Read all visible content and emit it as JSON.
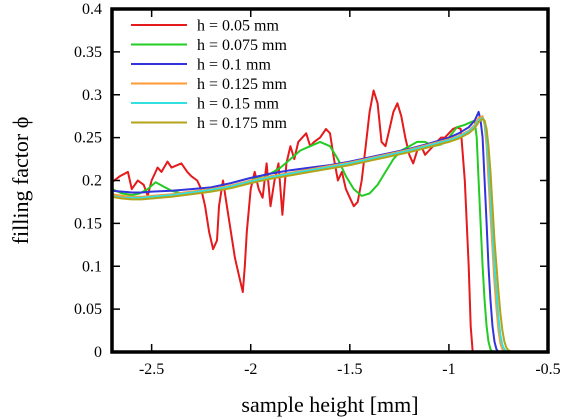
{
  "chart_data": {
    "type": "line",
    "title": "",
    "xlabel": "sample height [mm]",
    "ylabel": "filling factor ϕ",
    "xlim": [
      -2.7,
      -0.5
    ],
    "ylim": [
      0,
      0.4
    ],
    "xticks": [
      -2.5,
      -2,
      -1.5,
      -1,
      -0.5
    ],
    "xtick_labels": [
      "-2.5",
      "-2",
      "-1.5",
      "-1",
      "-0.5"
    ],
    "yticks": [
      0,
      0.05,
      0.1,
      0.15,
      0.2,
      0.25,
      0.3,
      0.35,
      0.4
    ],
    "ytick_labels": [
      "0",
      "0.05",
      "0.1",
      "0.15",
      "0.2",
      "0.25",
      "0.3",
      "0.35",
      "0.4"
    ],
    "grid": false,
    "legend_position": "top-left",
    "series": [
      {
        "name": "h = 0.05 mm",
        "color": "#e41a1c",
        "x": [
          -2.7,
          -2.66,
          -2.62,
          -2.6,
          -2.57,
          -2.54,
          -2.52,
          -2.5,
          -2.47,
          -2.45,
          -2.42,
          -2.4,
          -2.37,
          -2.35,
          -2.32,
          -2.3,
          -2.27,
          -2.25,
          -2.23,
          -2.21,
          -2.19,
          -2.17,
          -2.16,
          -2.14,
          -2.12,
          -2.1,
          -2.08,
          -2.06,
          -2.04,
          -2.03,
          -2.02,
          -2.0,
          -1.98,
          -1.96,
          -1.94,
          -1.92,
          -1.9,
          -1.88,
          -1.86,
          -1.84,
          -1.82,
          -1.8,
          -1.78,
          -1.76,
          -1.74,
          -1.72,
          -1.7,
          -1.68,
          -1.65,
          -1.62,
          -1.6,
          -1.58,
          -1.56,
          -1.54,
          -1.52,
          -1.5,
          -1.48,
          -1.46,
          -1.44,
          -1.42,
          -1.4,
          -1.38,
          -1.36,
          -1.34,
          -1.32,
          -1.3,
          -1.28,
          -1.26,
          -1.24,
          -1.22,
          -1.2,
          -1.18,
          -1.16,
          -1.14,
          -1.12,
          -1.1,
          -1.08,
          -1.06,
          -1.04,
          -1.02,
          -1.0,
          -0.98,
          -0.96,
          -0.94,
          -0.92,
          -0.9,
          -0.89,
          -0.88
        ],
        "y": [
          0.198,
          0.205,
          0.21,
          0.19,
          0.2,
          0.195,
          0.182,
          0.2,
          0.215,
          0.21,
          0.222,
          0.215,
          0.218,
          0.22,
          0.21,
          0.205,
          0.2,
          0.19,
          0.17,
          0.14,
          0.12,
          0.13,
          0.17,
          0.2,
          0.17,
          0.14,
          0.11,
          0.09,
          0.07,
          0.1,
          0.14,
          0.19,
          0.21,
          0.19,
          0.18,
          0.22,
          0.17,
          0.2,
          0.22,
          0.16,
          0.22,
          0.24,
          0.225,
          0.245,
          0.25,
          0.255,
          0.24,
          0.245,
          0.25,
          0.26,
          0.255,
          0.225,
          0.2,
          0.21,
          0.19,
          0.18,
          0.17,
          0.175,
          0.2,
          0.24,
          0.28,
          0.305,
          0.29,
          0.245,
          0.24,
          0.26,
          0.28,
          0.29,
          0.275,
          0.25,
          0.23,
          0.22,
          0.235,
          0.24,
          0.23,
          0.235,
          0.24,
          0.245,
          0.25,
          0.25,
          0.255,
          0.26,
          0.262,
          0.26,
          0.2,
          0.1,
          0.03,
          0.0
        ]
      },
      {
        "name": "h = 0.075 mm",
        "color": "#22cc22",
        "x": [
          -2.7,
          -2.65,
          -2.6,
          -2.56,
          -2.52,
          -2.48,
          -2.44,
          -2.4,
          -2.35,
          -2.3,
          -2.25,
          -2.2,
          -2.15,
          -2.1,
          -2.05,
          -2.0,
          -1.95,
          -1.9,
          -1.85,
          -1.8,
          -1.75,
          -1.7,
          -1.65,
          -1.6,
          -1.56,
          -1.52,
          -1.48,
          -1.44,
          -1.4,
          -1.36,
          -1.32,
          -1.28,
          -1.24,
          -1.2,
          -1.16,
          -1.12,
          -1.08,
          -1.04,
          -1.0,
          -0.96,
          -0.92,
          -0.89,
          -0.87,
          -0.86,
          -0.85,
          -0.84,
          -0.83,
          -0.82,
          -0.81,
          -0.8,
          -0.79,
          -0.78
        ],
        "y": [
          0.19,
          0.185,
          0.183,
          0.185,
          0.19,
          0.198,
          0.193,
          0.188,
          0.185,
          0.186,
          0.188,
          0.19,
          0.19,
          0.194,
          0.196,
          0.2,
          0.205,
          0.208,
          0.215,
          0.225,
          0.235,
          0.24,
          0.245,
          0.24,
          0.225,
          0.205,
          0.19,
          0.182,
          0.185,
          0.195,
          0.21,
          0.225,
          0.235,
          0.24,
          0.245,
          0.245,
          0.24,
          0.242,
          0.25,
          0.262,
          0.265,
          0.268,
          0.27,
          0.25,
          0.2,
          0.15,
          0.1,
          0.06,
          0.03,
          0.012,
          0.003,
          0.0
        ]
      },
      {
        "name": "h = 0.1 mm",
        "color": "#3333dd",
        "x": [
          -2.7,
          -2.65,
          -2.6,
          -2.55,
          -2.5,
          -2.4,
          -2.3,
          -2.2,
          -2.1,
          -2.0,
          -1.9,
          -1.8,
          -1.7,
          -1.6,
          -1.5,
          -1.4,
          -1.3,
          -1.2,
          -1.1,
          -1.0,
          -0.95,
          -0.9,
          -0.87,
          -0.85,
          -0.84,
          -0.83,
          -0.82,
          -0.81,
          -0.8,
          -0.79,
          -0.78,
          -0.77,
          -0.76,
          -0.75
        ],
        "y": [
          0.188,
          0.187,
          0.186,
          0.186,
          0.187,
          0.188,
          0.19,
          0.192,
          0.197,
          0.203,
          0.208,
          0.212,
          0.215,
          0.218,
          0.222,
          0.227,
          0.232,
          0.237,
          0.243,
          0.25,
          0.255,
          0.262,
          0.27,
          0.28,
          0.27,
          0.25,
          0.2,
          0.15,
          0.1,
          0.06,
          0.03,
          0.012,
          0.003,
          0.0
        ]
      },
      {
        "name": "h = 0.125 mm",
        "color": "#ff9933",
        "x": [
          -2.7,
          -2.65,
          -2.6,
          -2.55,
          -2.5,
          -2.4,
          -2.3,
          -2.2,
          -2.1,
          -2.0,
          -1.9,
          -1.8,
          -1.7,
          -1.6,
          -1.5,
          -1.4,
          -1.3,
          -1.2,
          -1.1,
          -1.0,
          -0.95,
          -0.9,
          -0.87,
          -0.85,
          -0.83,
          -0.82,
          -0.81,
          -0.8,
          -0.79,
          -0.78,
          -0.77,
          -0.76,
          -0.75,
          -0.74,
          -0.73,
          -0.72
        ],
        "y": [
          0.184,
          0.182,
          0.181,
          0.181,
          0.182,
          0.184,
          0.187,
          0.19,
          0.194,
          0.2,
          0.205,
          0.209,
          0.213,
          0.217,
          0.221,
          0.226,
          0.231,
          0.236,
          0.242,
          0.248,
          0.252,
          0.258,
          0.265,
          0.273,
          0.275,
          0.265,
          0.24,
          0.2,
          0.16,
          0.12,
          0.08,
          0.05,
          0.025,
          0.01,
          0.003,
          0.0
        ]
      },
      {
        "name": "h = 0.15 mm",
        "color": "#33e0e0",
        "x": [
          -2.7,
          -2.65,
          -2.6,
          -2.55,
          -2.5,
          -2.4,
          -2.3,
          -2.2,
          -2.1,
          -2.0,
          -1.9,
          -1.8,
          -1.7,
          -1.6,
          -1.5,
          -1.4,
          -1.3,
          -1.2,
          -1.1,
          -1.0,
          -0.95,
          -0.9,
          -0.87,
          -0.85,
          -0.83,
          -0.82,
          -0.81,
          -0.8,
          -0.79,
          -0.78,
          -0.77,
          -0.76,
          -0.75,
          -0.74,
          -0.73,
          -0.72,
          -0.71,
          -0.7
        ],
        "y": [
          0.182,
          0.18,
          0.18,
          0.18,
          0.181,
          0.183,
          0.186,
          0.189,
          0.193,
          0.199,
          0.204,
          0.208,
          0.212,
          0.216,
          0.22,
          0.225,
          0.23,
          0.235,
          0.241,
          0.247,
          0.251,
          0.257,
          0.263,
          0.27,
          0.273,
          0.268,
          0.25,
          0.22,
          0.18,
          0.14,
          0.1,
          0.07,
          0.04,
          0.02,
          0.008,
          0.003,
          0.001,
          0.0
        ]
      },
      {
        "name": "h = 0.175 mm",
        "color": "#b3a31a",
        "x": [
          -2.7,
          -2.65,
          -2.6,
          -2.55,
          -2.5,
          -2.4,
          -2.3,
          -2.2,
          -2.1,
          -2.0,
          -1.9,
          -1.8,
          -1.7,
          -1.6,
          -1.5,
          -1.4,
          -1.3,
          -1.2,
          -1.1,
          -1.0,
          -0.95,
          -0.9,
          -0.87,
          -0.85,
          -0.83,
          -0.82,
          -0.81,
          -0.8,
          -0.79,
          -0.78,
          -0.77,
          -0.76,
          -0.75,
          -0.74,
          -0.73,
          -0.72,
          -0.71,
          -0.7,
          -0.69,
          -0.68
        ],
        "y": [
          0.181,
          0.179,
          0.178,
          0.178,
          0.179,
          0.181,
          0.184,
          0.187,
          0.191,
          0.197,
          0.202,
          0.206,
          0.21,
          0.214,
          0.218,
          0.223,
          0.228,
          0.233,
          0.239,
          0.245,
          0.249,
          0.255,
          0.261,
          0.268,
          0.272,
          0.27,
          0.26,
          0.24,
          0.21,
          0.17,
          0.13,
          0.1,
          0.07,
          0.045,
          0.025,
          0.012,
          0.005,
          0.002,
          0.001,
          0.0
        ]
      }
    ]
  }
}
